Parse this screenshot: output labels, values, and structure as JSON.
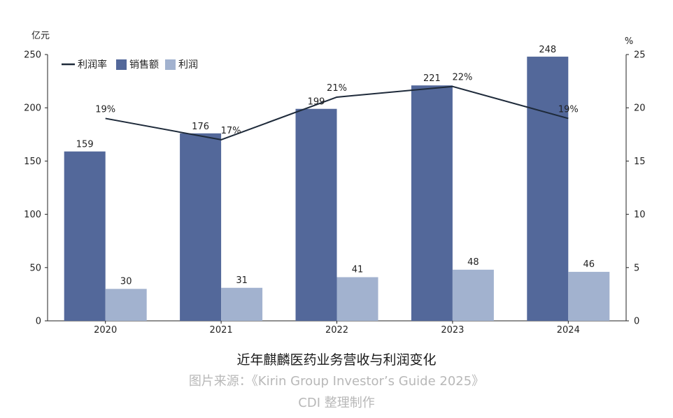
{
  "chart_data": {
    "type": "bar",
    "categories": [
      "2020",
      "2021",
      "2022",
      "2023",
      "2024"
    ],
    "series": [
      {
        "name": "销售额",
        "kind": "bar",
        "axis": "left",
        "color": "#53689a",
        "values": [
          159,
          176,
          199,
          221,
          248
        ]
      },
      {
        "name": "利润",
        "kind": "bar",
        "axis": "left",
        "color": "#a2b2cf",
        "values": [
          30,
          31,
          41,
          48,
          46
        ]
      },
      {
        "name": "利润率",
        "kind": "line",
        "axis": "right",
        "color": "#1e2a3a",
        "values": [
          19,
          17,
          21,
          22,
          19
        ],
        "value_labels": [
          "19%",
          "17%",
          "21%",
          "22%",
          "19%"
        ]
      }
    ],
    "legend_order": [
      "利润率",
      "销售额",
      "利润"
    ],
    "legend_position": "top-left",
    "y_left": {
      "unit": "亿元",
      "lim": [
        0,
        250
      ],
      "ticks": [
        0,
        50,
        100,
        150,
        200,
        250
      ]
    },
    "y_right": {
      "unit": "%",
      "lim": [
        0,
        25
      ],
      "ticks": [
        0,
        5,
        10,
        15,
        20,
        25
      ]
    },
    "grid": false,
    "title": "近年麒麟医药业务营收与利润变化"
  },
  "captions": {
    "title": "近年麒麟医药业务营收与利润变化",
    "source": "图片来源：《Kirin Group Investor’s Guide 2025》",
    "credit": "CDI 整理制作"
  }
}
